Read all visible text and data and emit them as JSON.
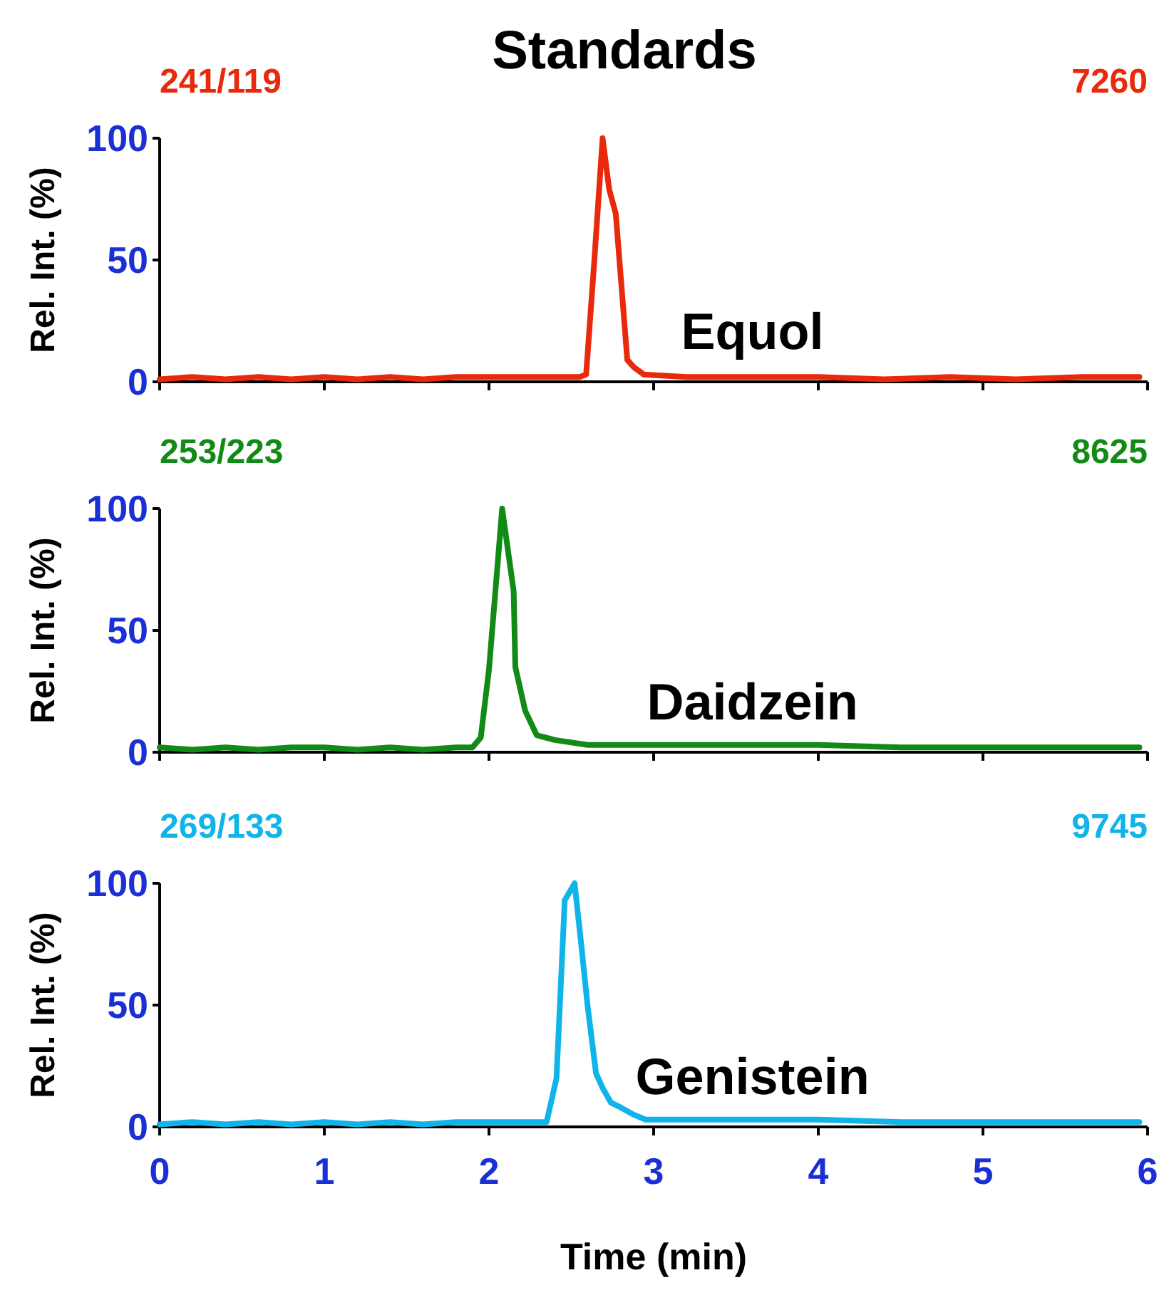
{
  "chart_data": [
    {
      "type": "line",
      "title": "Standards",
      "ylabel": "Rel. Int. (%)",
      "annotations": [
        "241/119",
        "7260",
        "Equol"
      ],
      "xlim": [
        0,
        6
      ],
      "ylim": [
        0,
        100
      ],
      "yticks": [
        0,
        50,
        100
      ],
      "xticks": [
        0,
        1,
        2,
        3,
        4,
        5,
        6
      ],
      "tick_labels": "y",
      "grid": false,
      "marker": "none",
      "line_style": "solid",
      "series": [
        {
          "color": "#e8290b",
          "x": [
            0,
            0.2,
            0.4,
            0.6,
            0.8,
            1.0,
            1.2,
            1.4,
            1.6,
            1.8,
            2.0,
            2.2,
            2.4,
            2.55,
            2.59,
            2.64,
            2.69,
            2.73,
            2.77,
            2.84,
            2.88,
            2.94,
            3.2,
            3.6,
            4.0,
            4.4,
            4.8,
            5.2,
            5.6,
            5.95
          ],
          "values": [
            1,
            2,
            1,
            2,
            1,
            2,
            1,
            2,
            1,
            2,
            2,
            2,
            2,
            2,
            3,
            50,
            100,
            79,
            69,
            9,
            6,
            3,
            2,
            2,
            2,
            1,
            2,
            1,
            2,
            2
          ]
        }
      ]
    },
    {
      "type": "line",
      "ylabel": "Rel. Int. (%)",
      "annotations": [
        "253/223",
        "8625",
        "Daidzein"
      ],
      "xlim": [
        0,
        6
      ],
      "ylim": [
        0,
        100
      ],
      "yticks": [
        0,
        50,
        100
      ],
      "xticks": [
        0,
        1,
        2,
        3,
        4,
        5,
        6
      ],
      "tick_labels": "y",
      "grid": false,
      "marker": "none",
      "line_style": "solid",
      "series": [
        {
          "color": "#128a16",
          "x": [
            0,
            0.2,
            0.4,
            0.6,
            0.8,
            1.0,
            1.2,
            1.4,
            1.6,
            1.8,
            1.9,
            1.95,
            2.0,
            2.08,
            2.15,
            2.16,
            2.22,
            2.29,
            2.4,
            2.6,
            3.0,
            3.5,
            4.0,
            4.5,
            5.0,
            5.5,
            5.95
          ],
          "values": [
            2,
            1,
            2,
            1,
            2,
            2,
            1,
            2,
            1,
            2,
            2,
            6,
            34,
            100,
            66,
            35,
            17,
            7,
            5,
            3,
            3,
            3,
            3,
            2,
            2,
            2,
            2
          ]
        }
      ]
    },
    {
      "type": "line",
      "ylabel": "Rel. Int. (%)",
      "xlabel": "Time (min)",
      "annotations": [
        "269/133",
        "9745",
        "Genistein"
      ],
      "xlim": [
        0,
        6
      ],
      "ylim": [
        0,
        100
      ],
      "yticks": [
        0,
        50,
        100
      ],
      "xticks": [
        0,
        1,
        2,
        3,
        4,
        5,
        6
      ],
      "grid": false,
      "marker": "none",
      "line_style": "solid",
      "series": [
        {
          "color": "#10b4e8",
          "x": [
            0,
            0.2,
            0.4,
            0.6,
            0.8,
            1.0,
            1.2,
            1.4,
            1.6,
            1.8,
            2.0,
            2.2,
            2.35,
            2.41,
            2.46,
            2.52,
            2.56,
            2.6,
            2.65,
            2.69,
            2.74,
            2.8,
            2.88,
            2.95,
            3.5,
            4.0,
            4.5,
            5.0,
            5.5,
            5.95
          ],
          "values": [
            1,
            2,
            1,
            2,
            1,
            2,
            1,
            2,
            1,
            2,
            2,
            2,
            2,
            20,
            93,
            100,
            75,
            49,
            22,
            16,
            10,
            8,
            5,
            3,
            3,
            3,
            2,
            2,
            2,
            2
          ]
        }
      ]
    }
  ]
}
